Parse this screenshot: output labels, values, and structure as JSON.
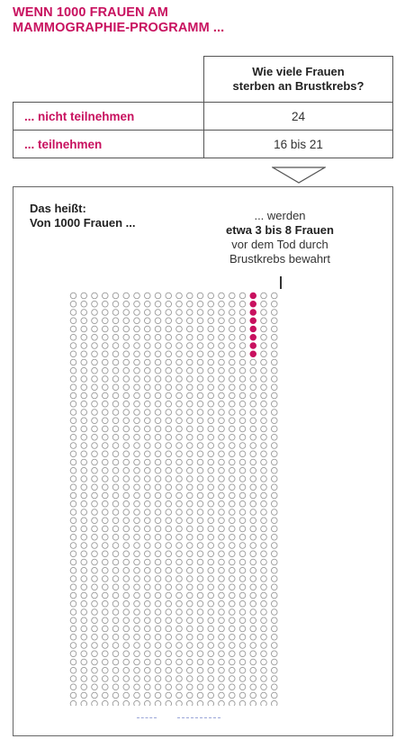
{
  "title": {
    "line1": "WENN 1000 FRAUEN AM",
    "line2": "MAMMOGRAPHIE-PROGRAMM ..."
  },
  "table": {
    "header_line1": "Wie viele Frauen",
    "header_line2": "sterben an Brustkrebs?",
    "rows": [
      {
        "label": "... nicht teilnehmen",
        "value": "24"
      },
      {
        "label": "... teilnehmen",
        "value": "16 bis 21"
      }
    ]
  },
  "explain": {
    "line1": "Das heißt:",
    "line2": "Von 1000 Frauen ..."
  },
  "callout": {
    "line1": "... werden",
    "line2": "etwa 3 bis 8 Frauen",
    "line3": "vor dem Tod durch",
    "line4": "Brustkrebs bewahrt"
  },
  "grid": {
    "total": 1000,
    "columns": 20,
    "rows": 50,
    "highlighted": 8,
    "highlight_column": 17,
    "highlight_color": "#c8115f",
    "circle_color": "#9a9a9a"
  },
  "colors": {
    "accent": "#c8115f",
    "border": "#555555"
  }
}
